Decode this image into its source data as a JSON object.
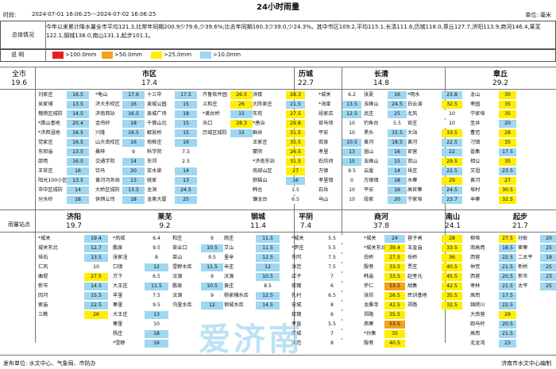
{
  "title": "24小时雨量",
  "period_label": "时段:",
  "period": "2024-07-01 16:06:25---2024-07-02 16:06:25",
  "unit": "单位: 毫米",
  "summary_label": "总体情况",
  "summary_text": "今年以来累计降水量全市平均121.3,比常年同期200.9少79.6,少39.6%;比去年同期160.3少39.0,少24.3%。其中市区109.2,平均115.1,长清111.8,历城118.0,章丘127.7,济阳113.9,商河146.4,莱芜122.1,钢城138.0,南山131.1,起步101.1。",
  "legend_label": "说 明",
  "legend": [
    {
      "label": ">100.0mm",
      "color": "#ee1c1c"
    },
    {
      "label": ">50.0mm",
      "color": "#f4a11c"
    },
    {
      "label": ">25.0mm",
      "color": "#ffee00"
    },
    {
      "label": ">10.0mm",
      "color": "#9fd7f2"
    }
  ],
  "overall_label": "全市",
  "overall_value": "19.6",
  "side_label": "雨量站点",
  "regions_top": [
    {
      "name": "市区",
      "value": "17.4"
    },
    {
      "name": "历城",
      "value": "22.7"
    },
    {
      "name": "长清",
      "value": "14.8"
    },
    {
      "name": "章丘",
      "value": "29.2"
    }
  ],
  "regions_bottom": [
    {
      "name": "济阳",
      "value": "19.7"
    },
    {
      "name": "莱芜",
      "value": "9.2"
    },
    {
      "name": "钢城",
      "value": "11.4"
    },
    {
      "name": "平阴",
      "value": "7.4"
    },
    {
      "name": "商河",
      "value": "37.8"
    },
    {
      "name": "南山",
      "value": "24.1"
    },
    {
      "name": "起步",
      "value": "21.7"
    }
  ],
  "top_columns": [
    [
      [
        "刘家庄",
        "16.5"
      ],
      [
        "吴家铺",
        "13.5"
      ],
      [
        "槐荫区城防",
        "14.5"
      ],
      [
        "*腊山基地",
        "20.4"
      ],
      [
        "*济西湿地",
        "16.5"
      ],
      [
        "党家庄",
        "16.5"
      ],
      [
        "东担庙",
        "13.5"
      ],
      [
        "邵而",
        "16.5"
      ],
      [
        "王官庄",
        "16"
      ],
      [
        "阳光100小区",
        "13.5"
      ],
      [
        "市中区城防",
        "14"
      ],
      [
        "分水岭",
        "18"
      ]
    ],
    [
      [
        "*龟山",
        "17.6"
      ],
      [
        "济大东校区",
        "16"
      ],
      [
        "济南西站",
        "16.5"
      ],
      [
        "金鸡岭",
        "18"
      ],
      [
        "兴隆",
        "16.5"
      ],
      [
        "山大南校区",
        "16"
      ],
      [
        "桑梓",
        "9"
      ],
      [
        "交通学院",
        "14"
      ],
      [
        "饮马",
        "20"
      ],
      [
        "黄河河务局",
        "13"
      ],
      [
        "大桥区城防",
        "13.5"
      ],
      [
        "供销公司",
        "18"
      ]
    ],
    [
      [
        "十三中",
        "17.5"
      ],
      [
        "泉城公园",
        "15"
      ],
      [
        "泉城广场",
        "18"
      ],
      [
        "千佛山北",
        "15"
      ],
      [
        "解放桥",
        "15"
      ],
      [
        "甸柳庄",
        "16"
      ],
      [
        "科学院",
        "7.5"
      ],
      [
        "东郊",
        "2.5"
      ],
      [
        "浆水泉",
        "14"
      ],
      [
        "姚家",
        "13"
      ],
      [
        "龙洞",
        "24.5"
      ],
      [
        "龙奥大厦",
        "25"
      ]
    ],
    [
      [
        "齐鲁软件园",
        "26.5"
      ],
      [
        "义和庄",
        "26"
      ],
      [
        "*黄台桥",
        "15"
      ],
      [
        "泺口",
        "28.3"
      ],
      [
        "历城区城防",
        "15"
      ],
      [
        "",
        ""
      ],
      [
        "",
        ""
      ],
      [
        "",
        ""
      ],
      [
        "",
        ""
      ],
      [
        "",
        ""
      ],
      [
        "",
        ""
      ],
      [
        "",
        ""
      ]
    ],
    [
      [
        "洪楼",
        "28.3"
      ],
      [
        "大陈家庄",
        "21.5"
      ],
      [
        "东苑",
        "27.5"
      ],
      [
        "*唐冶",
        "29.8"
      ],
      [
        "群井",
        "31.5"
      ],
      [
        "王家庄",
        "35.5"
      ],
      [
        "蒙阴",
        "26.5"
      ],
      [
        "*济南东站",
        "31.5"
      ],
      [
        "南部山区",
        "27"
      ],
      [
        "狼猫山",
        "16"
      ],
      [
        "韩仓",
        "1.5"
      ],
      [
        "镰龙台",
        "6.5"
      ]
    ],
    [
      [
        "*城关",
        "6.2"
      ],
      [
        "*海棠",
        "13.5"
      ],
      [
        "段家店",
        "12.5"
      ],
      [
        "官马场",
        "10"
      ],
      [
        "平安",
        "10"
      ],
      [
        "双泉",
        "10.5"
      ],
      [
        "孝里",
        "13"
      ],
      [
        "石坊间",
        "15"
      ],
      [
        "万德",
        "9.5"
      ],
      [
        "孝里镇",
        "0"
      ],
      [
        "石岳",
        "10"
      ],
      [
        "马山",
        "10"
      ]
    ],
    [
      [
        "张夏",
        "16"
      ],
      [
        "玉峰山",
        "24.5"
      ],
      [
        "武庄",
        "25"
      ],
      [
        "钓鱼台",
        "5.5"
      ],
      [
        "黑头",
        "15.5"
      ],
      [
        "黄河",
        "18.5"
      ],
      [
        "崮山",
        "16"
      ],
      [
        "五峰山",
        "15"
      ],
      [
        "云崖",
        "14"
      ],
      [
        "万德镇",
        "18"
      ],
      [
        "平安",
        "16"
      ],
      [
        "段家",
        "20"
      ]
    ],
    [
      [
        "*明水",
        "23.8"
      ],
      [
        "白云湖",
        "32.5"
      ],
      [
        "北风",
        "10"
      ],
      [
        "官庄",
        "10"
      ],
      [
        "大站",
        "33.5"
      ],
      [
        "黄河",
        "22.5"
      ],
      [
        "官营",
        "22"
      ],
      [
        "双山",
        "29.5"
      ],
      [
        "垛庄",
        "22.5"
      ],
      [
        "水寨",
        "29"
      ],
      [
        "高官寨",
        "24.5"
      ],
      [
        "宁家埠",
        "23.7"
      ]
    ],
    [
      [
        "龙山",
        "30"
      ],
      [
        "枣园",
        "35"
      ],
      [
        "宁家埠",
        "35"
      ],
      [
        "圣井",
        "20"
      ],
      [
        "曹范",
        "28"
      ],
      [
        "刁镇",
        "35"
      ],
      [
        "普集",
        "17.5"
      ],
      [
        "相公",
        "35"
      ],
      [
        "文祖",
        "23.5"
      ],
      [
        "黄河",
        "27"
      ],
      [
        "埠村",
        "30.5"
      ],
      [
        "辛寨",
        "32.5"
      ]
    ]
  ],
  "bottom_columns": [
    [
      [
        "*城关",
        "19.4"
      ],
      [
        "城关东北",
        "12.7"
      ],
      [
        "垛石",
        "13.5"
      ],
      [
        "仁风",
        "10"
      ],
      [
        "曲堤",
        "27.5"
      ],
      [
        "新市",
        "14.5"
      ],
      [
        "回河",
        "15.5"
      ],
      [
        "索庙",
        "22.5"
      ],
      [
        "三教",
        "26"
      ]
    ],
    [
      [
        "*凤城",
        "6.4"
      ],
      [
        "鹏泉",
        "9.5"
      ],
      [
        "张家洼",
        "8"
      ],
      [
        "口镇",
        "12"
      ],
      [
        "方下",
        "6.5"
      ],
      [
        "大王庄",
        "11.5"
      ],
      [
        "羊里",
        "7.5"
      ],
      [
        "寨里",
        "9.5"
      ],
      [
        "大王庄",
        "13"
      ],
      [
        "寨里",
        "10"
      ],
      [
        "杨庄",
        "18"
      ],
      [
        "*雪野",
        "16"
      ]
    ],
    [
      [
        "和庄",
        "9"
      ],
      [
        "茶业口",
        "10.5"
      ],
      [
        "苗山",
        "9.5"
      ],
      [
        "雪野水库",
        "11.5"
      ],
      [
        "汶源",
        "9"
      ],
      [
        "鹏泉",
        "10.5"
      ],
      [
        "汶源",
        "9"
      ],
      [
        "沟里水库",
        "12"
      ],
      [
        "",
        ""
      ]
    ],
    [
      [
        "颜庄",
        "11.5"
      ],
      [
        "艾山",
        "11.5"
      ],
      [
        "里辛",
        "12.5"
      ],
      [
        "辛庄",
        "12"
      ],
      [
        "汶源",
        "10.5"
      ],
      [
        "黄庄",
        "8.5"
      ],
      [
        "杨家横水库",
        "12.5"
      ],
      [
        "钢城水库",
        "14.5"
      ],
      [
        "",
        ""
      ]
    ],
    [
      [
        "*城关",
        "5.5"
      ],
      [
        "*尹庄",
        "5.5"
      ],
      [
        "东阿",
        "7.5"
      ],
      [
        "洪范",
        "7.5"
      ],
      [
        "店子",
        "7"
      ],
      [
        "玫瑰",
        "6"
      ],
      [
        "孔村",
        "6.5"
      ],
      [
        "安城",
        "8"
      ],
      [
        "玫瑰",
        "6"
      ],
      [
        "孝直",
        "5.5"
      ],
      [
        "安城",
        "7"
      ],
      [
        "洪范",
        "8"
      ]
    ],
    [
      [
        "*城关",
        "24"
      ],
      [
        "*城关东北",
        "39.4"
      ],
      [
        "白桥",
        "27.5"
      ],
      [
        "殷巷",
        "33.5"
      ],
      [
        "韩庙",
        "33.5"
      ],
      [
        "怀仁",
        "53.5"
      ],
      [
        "张坊",
        "26.5"
      ],
      [
        "龙桑寺",
        "42.5"
      ],
      [
        "郑路",
        "35.5"
      ],
      [
        "燕寨",
        "53.5"
      ],
      [
        "*孙集",
        "35"
      ],
      [
        "殷巷",
        "40.5"
      ]
    ],
    [
      [
        "营子闸",
        "28"
      ],
      [
        "玉皇庙",
        "33.5"
      ],
      [
        "岳桥",
        "36"
      ],
      [
        "贾庄",
        "40.5"
      ],
      [
        "赵奎元",
        "45.5"
      ],
      [
        "胡集",
        "42.5"
      ],
      [
        "民训基地",
        "35.5"
      ],
      [
        "郑路",
        "32.5"
      ],
      [
        "",
        ""
      ]
    ],
    [
      [
        "柳埠",
        "27.5"
      ],
      [
        "南高而",
        "18.5"
      ],
      [
        "西营",
        "22.5"
      ],
      [
        "仲宫",
        "21.5"
      ],
      [
        "西营",
        "20.5"
      ],
      [
        "枣林",
        "21.5"
      ],
      [
        "高而",
        "17.5"
      ],
      [
        "锦绣川",
        "22.5"
      ],
      [
        "大南营",
        "29"
      ],
      [
        "跑马岭",
        "20.5"
      ],
      [
        "高而",
        "21.5"
      ],
      [
        "北龙湾",
        "23"
      ]
    ],
    [
      [
        "孙耿",
        "20"
      ],
      [
        "崔寨",
        "25"
      ],
      [
        "二太平",
        "18"
      ],
      [
        "新桥",
        "25"
      ],
      [
        "新市",
        "23"
      ],
      [
        "太平",
        "25"
      ],
      [
        "",
        ""
      ],
      [
        "",
        ""
      ],
      [
        "",
        ""
      ]
    ]
  ],
  "footer_left": "发布单位: 水文中心、气象局、市防办",
  "footer_right": "济南市水文中心编制",
  "watermark": "爱济南"
}
